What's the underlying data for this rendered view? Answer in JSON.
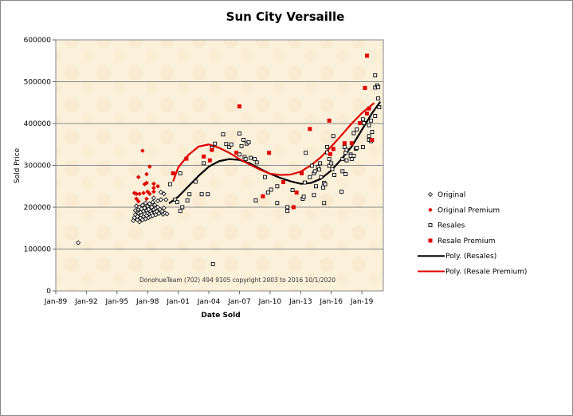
{
  "chart_data": {
    "type": "scatter",
    "title": "Sun City Versaille",
    "xlabel": "Date Sold",
    "ylabel": "Sold Price",
    "xlim": [
      1989.0,
      2021.1
    ],
    "ylim": [
      0,
      600000
    ],
    "grid": true,
    "legend_position": "right",
    "x_ticks": [
      {
        "value": 1989,
        "label": "Jan-89"
      },
      {
        "value": 1992,
        "label": "Jan-92"
      },
      {
        "value": 1995,
        "label": "Jan-95"
      },
      {
        "value": 1998,
        "label": "Jan-98"
      },
      {
        "value": 2001,
        "label": "Jan-01"
      },
      {
        "value": 2004,
        "label": "Jan-04"
      },
      {
        "value": 2007,
        "label": "Jan-07"
      },
      {
        "value": 2010,
        "label": "Jan-10"
      },
      {
        "value": 2013,
        "label": "Jan-13"
      },
      {
        "value": 2016,
        "label": "Jan-16"
      },
      {
        "value": 2019,
        "label": "Jan-19"
      }
    ],
    "y_ticks": [
      {
        "value": 0,
        "label": "0"
      },
      {
        "value": 100000,
        "label": "100000"
      },
      {
        "value": 200000,
        "label": "200000"
      },
      {
        "value": 300000,
        "label": "300000"
      },
      {
        "value": 400000,
        "label": "400000"
      },
      {
        "value": 500000,
        "label": "500000"
      },
      {
        "value": 600000,
        "label": "600000"
      }
    ],
    "annotation": "DonohueTeam  (702) 494 9105 copyright  2003 to 2016  10/1/2020",
    "series": [
      {
        "name": "Original",
        "marker": "diamond-open",
        "color": "#000000",
        "points": [
          [
            1991.2,
            115000
          ],
          [
            1996.6,
            168000
          ],
          [
            1996.7,
            175000
          ],
          [
            1996.8,
            182000
          ],
          [
            1996.8,
            192000
          ],
          [
            1996.9,
            203000
          ],
          [
            1997.0,
            170000
          ],
          [
            1997.0,
            178000
          ],
          [
            1997.1,
            186000
          ],
          [
            1997.1,
            195000
          ],
          [
            1997.2,
            165000
          ],
          [
            1997.2,
            200000
          ],
          [
            1997.3,
            174000
          ],
          [
            1997.3,
            188000
          ],
          [
            1997.4,
            181000
          ],
          [
            1997.4,
            196000
          ],
          [
            1997.5,
            170000
          ],
          [
            1997.5,
            205000
          ],
          [
            1997.6,
            178000
          ],
          [
            1997.6,
            190000
          ],
          [
            1997.7,
            184000
          ],
          [
            1997.7,
            198000
          ],
          [
            1997.8,
            172000
          ],
          [
            1997.8,
            210000
          ],
          [
            1997.9,
            180000
          ],
          [
            1997.9,
            192000
          ],
          [
            1998.0,
            186000
          ],
          [
            1998.0,
            202000
          ],
          [
            1998.1,
            175000
          ],
          [
            1998.1,
            195000
          ],
          [
            1998.2,
            183000
          ],
          [
            1998.2,
            208000
          ],
          [
            1998.3,
            178000
          ],
          [
            1998.3,
            190000
          ],
          [
            1998.4,
            200000
          ],
          [
            1998.4,
            185000
          ],
          [
            1998.5,
            212000
          ],
          [
            1998.5,
            180000
          ],
          [
            1998.6,
            194000
          ],
          [
            1998.6,
            222000
          ],
          [
            1998.7,
            188000
          ],
          [
            1998.7,
            205000
          ],
          [
            1998.8,
            182000
          ],
          [
            1998.8,
            198000
          ],
          [
            1998.9,
            190000
          ],
          [
            1999.0,
            200000
          ],
          [
            1999.0,
            215000
          ],
          [
            1999.1,
            185000
          ],
          [
            1999.2,
            195000
          ],
          [
            1999.3,
            218000
          ],
          [
            1999.3,
            236000
          ],
          [
            1999.4,
            190000
          ],
          [
            1999.5,
            183000
          ],
          [
            1999.6,
            198000
          ],
          [
            1999.6,
            232000
          ],
          [
            1999.7,
            186000
          ],
          [
            1999.8,
            218000
          ],
          [
            1999.9,
            184000
          ]
        ]
      },
      {
        "name": "Original Premium",
        "marker": "diamond-filled",
        "color": "#e00000",
        "points": [
          [
            1996.7,
            234000
          ],
          [
            1996.9,
            232000
          ],
          [
            1997.2,
            232000
          ],
          [
            1997.6,
            234000
          ],
          [
            1997.1,
            272000
          ],
          [
            1997.5,
            335000
          ],
          [
            1997.9,
            279000
          ],
          [
            1998.2,
            297000
          ],
          [
            1997.9,
            258000
          ],
          [
            1997.7,
            255000
          ],
          [
            1998.6,
            256000
          ],
          [
            1999.0,
            250000
          ],
          [
            1998.6,
            246000
          ],
          [
            1998.0,
            237000
          ],
          [
            1998.2,
            232000
          ],
          [
            1997.1,
            214000
          ],
          [
            1996.9,
            220000
          ],
          [
            1997.9,
            220000
          ],
          [
            1998.6,
            237000
          ]
        ]
      },
      {
        "name": "Resales",
        "marker": "square-open",
        "color": "#000000",
        "points": [
          [
            2000.2,
            255000
          ],
          [
            2000.7,
            218000
          ],
          [
            2000.9,
            212000
          ],
          [
            2001.2,
            281000
          ],
          [
            2001.2,
            191000
          ],
          [
            2001.4,
            200000
          ],
          [
            2001.9,
            216000
          ],
          [
            2002.1,
            231000
          ],
          [
            2002.7,
            261000
          ],
          [
            2003.3,
            231000
          ],
          [
            2003.5,
            305000
          ],
          [
            2003.9,
            231000
          ],
          [
            2004.4,
            64000
          ],
          [
            2004.3,
            342000
          ],
          [
            2004.6,
            352000
          ],
          [
            2005.4,
            374000
          ],
          [
            2005.7,
            351000
          ],
          [
            2006.0,
            344000
          ],
          [
            2006.2,
            350000
          ],
          [
            2007.0,
            376000
          ],
          [
            2007.0,
            326000
          ],
          [
            2007.2,
            346000
          ],
          [
            2007.4,
            361000
          ],
          [
            2007.5,
            320000
          ],
          [
            2007.7,
            352000
          ],
          [
            2007.9,
            355000
          ],
          [
            2007.6,
            315000
          ],
          [
            2008.1,
            318000
          ],
          [
            2008.5,
            315000
          ],
          [
            2008.6,
            216000
          ],
          [
            2008.7,
            307000
          ],
          [
            2009.5,
            272000
          ],
          [
            2009.8,
            235000
          ],
          [
            2010.1,
            242000
          ],
          [
            2010.7,
            250000
          ],
          [
            2010.7,
            210000
          ],
          [
            2011.7,
            200000
          ],
          [
            2011.7,
            191000
          ],
          [
            2012.2,
            241000
          ],
          [
            2013.2,
            220000
          ],
          [
            2013.3,
            225000
          ],
          [
            2013.4,
            259000
          ],
          [
            2013.5,
            330000
          ],
          [
            2013.9,
            272000
          ],
          [
            2014.1,
            299000
          ],
          [
            2014.3,
            229000
          ],
          [
            2014.3,
            281000
          ],
          [
            2014.5,
            250000
          ],
          [
            2014.4,
            286000
          ],
          [
            2014.7,
            296000
          ],
          [
            2014.8,
            290000
          ],
          [
            2014.9,
            305000
          ],
          [
            2015.0,
            272000
          ],
          [
            2015.2,
            247000
          ],
          [
            2015.3,
            210000
          ],
          [
            2015.3,
            258000
          ],
          [
            2015.4,
            255000
          ],
          [
            2015.6,
            331000
          ],
          [
            2015.6,
            344000
          ],
          [
            2015.8,
            299000
          ],
          [
            2015.8,
            315000
          ],
          [
            2016.0,
            305000
          ],
          [
            2016.1,
            291000
          ],
          [
            2016.2,
            370000
          ],
          [
            2016.3,
            277000
          ],
          [
            2017.0,
            237000
          ],
          [
            2017.1,
            315000
          ],
          [
            2017.1,
            286000
          ],
          [
            2017.3,
            344000
          ],
          [
            2017.4,
            330000
          ],
          [
            2017.4,
            279000
          ],
          [
            2017.5,
            312000
          ],
          [
            2017.5,
            337000
          ],
          [
            2017.9,
            326000
          ],
          [
            2017.9,
            323000
          ],
          [
            2018.0,
            315000
          ],
          [
            2018.2,
            323000
          ],
          [
            2018.2,
            377000
          ],
          [
            2018.4,
            340000
          ],
          [
            2018.5,
            386000
          ],
          [
            2018.5,
            342000
          ],
          [
            2019.1,
            344000
          ],
          [
            2019.1,
            410000
          ],
          [
            2019.2,
            401000
          ],
          [
            2019.7,
            396000
          ],
          [
            2019.7,
            361000
          ],
          [
            2019.7,
            370000
          ],
          [
            2019.9,
            358000
          ],
          [
            2019.9,
            407000
          ],
          [
            2020.0,
            380000
          ],
          [
            2020.3,
            418000
          ],
          [
            2020.3,
            486000
          ],
          [
            2020.3,
            515000
          ],
          [
            2020.5,
            491000
          ],
          [
            2020.6,
            487000
          ],
          [
            2020.6,
            460000
          ],
          [
            2020.7,
            439000
          ]
        ]
      },
      {
        "name": "Resale Premium",
        "marker": "square-filled",
        "color": "#e00000",
        "points": [
          [
            2000.5,
            281000
          ],
          [
            2001.8,
            316000
          ],
          [
            2003.5,
            321000
          ],
          [
            2004.1,
            312000
          ],
          [
            2004.3,
            337000
          ],
          [
            2006.7,
            330000
          ],
          [
            2007.0,
            441000
          ],
          [
            2009.3,
            226000
          ],
          [
            2009.9,
            330000
          ],
          [
            2011.3,
            260000
          ],
          [
            2012.3,
            200000
          ],
          [
            2012.6,
            235000
          ],
          [
            2013.1,
            281000
          ],
          [
            2013.9,
            387000
          ],
          [
            2015.8,
            407000
          ],
          [
            2015.9,
            327000
          ],
          [
            2016.2,
            339000
          ],
          [
            2017.3,
            353000
          ],
          [
            2018.0,
            353000
          ],
          [
            2018.8,
            401000
          ],
          [
            2019.3,
            485000
          ],
          [
            2019.5,
            562000
          ],
          [
            2019.5,
            424000
          ],
          [
            2019.7,
            436000
          ],
          [
            2020.0,
            361000
          ]
        ]
      },
      {
        "name": "Poly. (Resales)",
        "marker": "line",
        "color": "#000000",
        "points": [
          [
            2000.1,
            209000
          ],
          [
            2001,
            225000
          ],
          [
            2002,
            250000
          ],
          [
            2003,
            275000
          ],
          [
            2004,
            297000
          ],
          [
            2005,
            310000
          ],
          [
            2006,
            315000
          ],
          [
            2007,
            313000
          ],
          [
            2008,
            305000
          ],
          [
            2009,
            292000
          ],
          [
            2010,
            280000
          ],
          [
            2011,
            270000
          ],
          [
            2012,
            262000
          ],
          [
            2013,
            256000
          ],
          [
            2014,
            258000
          ],
          [
            2015,
            268000
          ],
          [
            2016,
            288000
          ],
          [
            2017,
            315000
          ],
          [
            2018,
            345000
          ],
          [
            2019,
            385000
          ],
          [
            2020,
            425000
          ],
          [
            2020.8,
            452000
          ]
        ]
      },
      {
        "name": "Poly. (Resale Premium)",
        "marker": "line",
        "color": "#e00000",
        "points": [
          [
            2000.5,
            262000
          ],
          [
            2001,
            295000
          ],
          [
            2002,
            325000
          ],
          [
            2003,
            345000
          ],
          [
            2004,
            350000
          ],
          [
            2005,
            342000
          ],
          [
            2006,
            330000
          ],
          [
            2007,
            315000
          ],
          [
            2008,
            302000
          ],
          [
            2009,
            290000
          ],
          [
            2010,
            280000
          ],
          [
            2011,
            277000
          ],
          [
            2012,
            278000
          ],
          [
            2013,
            285000
          ],
          [
            2014,
            300000
          ],
          [
            2015,
            320000
          ],
          [
            2016,
            345000
          ],
          [
            2017,
            372000
          ],
          [
            2018,
            400000
          ],
          [
            2019,
            425000
          ],
          [
            2020.2,
            449000
          ]
        ]
      }
    ]
  }
}
